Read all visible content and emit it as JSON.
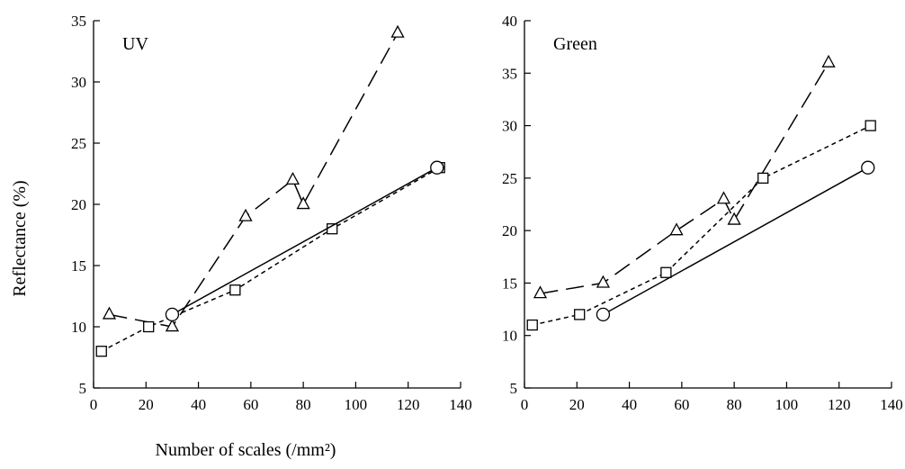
{
  "figure": {
    "ylabel": "Reflectance (%)",
    "xlabel": "Number of scales (/mm²)"
  },
  "chart_data": [
    {
      "type": "line",
      "title": "UV",
      "xlim": [
        0,
        140
      ],
      "ylim": [
        5,
        35
      ],
      "xticks": [
        0,
        20,
        40,
        60,
        80,
        100,
        120,
        140
      ],
      "yticks": [
        5,
        10,
        15,
        20,
        25,
        30,
        35
      ],
      "series": [
        {
          "marker": "triangle",
          "line_style": "long-dash",
          "x": [
            6,
            30,
            58,
            76,
            80,
            116
          ],
          "y": [
            11,
            10,
            19,
            22,
            20,
            34
          ]
        },
        {
          "marker": "square",
          "line_style": "short-dash",
          "x": [
            3,
            21,
            54,
            91,
            132
          ],
          "y": [
            8,
            10,
            13,
            18,
            23
          ]
        },
        {
          "marker": "circle",
          "line_style": "solid",
          "x": [
            30,
            131
          ],
          "y": [
            11,
            23
          ]
        }
      ]
    },
    {
      "type": "line",
      "title": "Green",
      "xlim": [
        0,
        140
      ],
      "ylim": [
        5,
        40
      ],
      "xticks": [
        0,
        20,
        40,
        60,
        80,
        100,
        120,
        140
      ],
      "yticks": [
        5,
        10,
        15,
        20,
        25,
        30,
        35,
        40
      ],
      "series": [
        {
          "marker": "triangle",
          "line_style": "long-dash",
          "x": [
            6,
            30,
            58,
            76,
            80,
            116
          ],
          "y": [
            14,
            15,
            20,
            23,
            21,
            36
          ]
        },
        {
          "marker": "square",
          "line_style": "short-dash",
          "x": [
            3,
            21,
            54,
            91,
            132
          ],
          "y": [
            11,
            12,
            16,
            25,
            30
          ]
        },
        {
          "marker": "circle",
          "line_style": "solid",
          "x": [
            30,
            131
          ],
          "y": [
            12,
            26
          ]
        }
      ]
    }
  ]
}
